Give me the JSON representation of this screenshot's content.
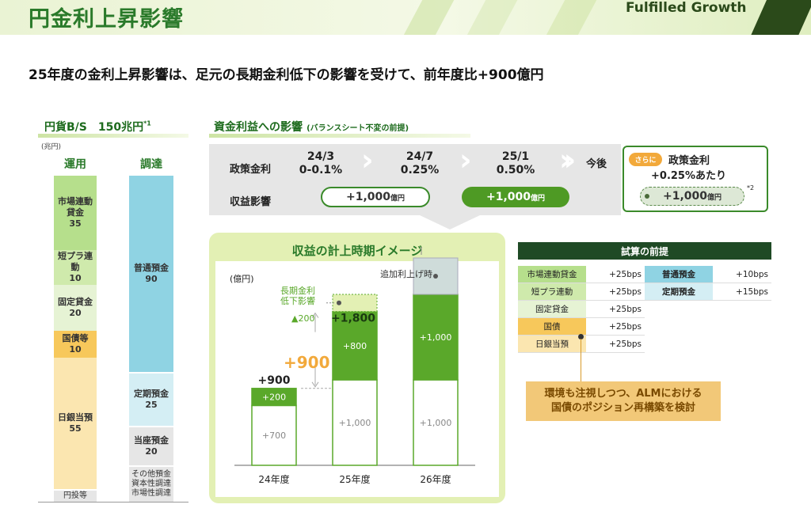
{
  "header": {
    "title": "円金利上昇影響",
    "brand": "Fulfilled Growth"
  },
  "subtitle": "25年度の金利上昇影響は、足元の長期金利低下の影響を受けて、前年度比+900億円",
  "bs": {
    "title": "円貨B/S　150兆円",
    "title_note": "*1",
    "unit": "(兆円)",
    "left_head": "運用",
    "right_head": "調達",
    "left_items": [
      {
        "label": "市場連動貸金",
        "value": "35"
      },
      {
        "label": "短プラ連動",
        "value": "10"
      },
      {
        "label": "固定貸金",
        "value": "20"
      },
      {
        "label": "国債等",
        "value": "10"
      },
      {
        "label": "日銀当預",
        "value": "55"
      },
      {
        "label": "円投等",
        "value": ""
      }
    ],
    "right_items": [
      {
        "label": "普通預金",
        "value": "90"
      },
      {
        "label": "定期預金",
        "value": "25"
      },
      {
        "label": "当座預金",
        "value": "20"
      },
      {
        "label": "その他預金",
        "value": ""
      },
      {
        "label": "資本性調達",
        "value": ""
      },
      {
        "label": "市場性調達",
        "value": ""
      }
    ]
  },
  "nii": {
    "title": "資金利益への影響",
    "title_note": "(バランスシート不変の前提)",
    "row1_label": "政策金利",
    "row2_label": "収益影響",
    "steps": [
      {
        "date": "24/3",
        "rate": "0-0.1%"
      },
      {
        "date": "24/7",
        "rate": "0.25%"
      },
      {
        "date": "25/1",
        "rate": "0.50%"
      }
    ],
    "future_label": "今後",
    "impact1": "+1,000",
    "impact2": "+1,000",
    "unit_oku": "億円",
    "future_box": {
      "badge": "さらに",
      "line1": "政策金利",
      "line2": "+0.25%あたり",
      "impact": "+1,000",
      "unit": "億円",
      "note": "*2"
    }
  },
  "timing": {
    "title": "収益の計上時期イメージ",
    "unit": "(億円)",
    "longterm_label1": "長期金利",
    "longterm_label2": "低下影響",
    "longterm_value": "▲200",
    "additional_label": "追加利上げ時",
    "delta_label": "+900"
  },
  "chart_data": {
    "type": "bar",
    "categories": [
      "24年度",
      "25年度",
      "26年度"
    ],
    "series": [
      {
        "values": [
          700,
          1000,
          1000
        ]
      },
      {
        "values": [
          200,
          800,
          1000
        ]
      }
    ],
    "segment_labels": [
      [
        "+700",
        "+200"
      ],
      [
        "+1,000",
        "+800"
      ],
      [
        "+1,000",
        "+1,000"
      ]
    ],
    "totals": [
      "+900",
      "+1,800",
      ""
    ],
    "longterm_reduction": 200
  },
  "assumptions": {
    "title": "試算の前提",
    "left": [
      {
        "label": "市場連動貸金",
        "value": "+25bps"
      },
      {
        "label": "短プラ連動",
        "value": "+25bps"
      },
      {
        "label": "固定貸金",
        "value": "+25bps"
      },
      {
        "label": "国債",
        "value": "+25bps"
      },
      {
        "label": "日銀当預",
        "value": "+25bps"
      }
    ],
    "right": [
      {
        "label": "普通預金",
        "value": "+10bps"
      },
      {
        "label": "定期預金",
        "value": "+15bps"
      }
    ]
  },
  "callout": {
    "line1": "環境も注視しつつ、ALMにおける",
    "line2": "国債のポジション再構築を検討"
  },
  "colors": {
    "green": "#2a7a2a",
    "bar_green": "#5aa82a",
    "lime": "#e3f0b4",
    "blue": "#8fd3e3",
    "orange": "#f2a93b"
  }
}
